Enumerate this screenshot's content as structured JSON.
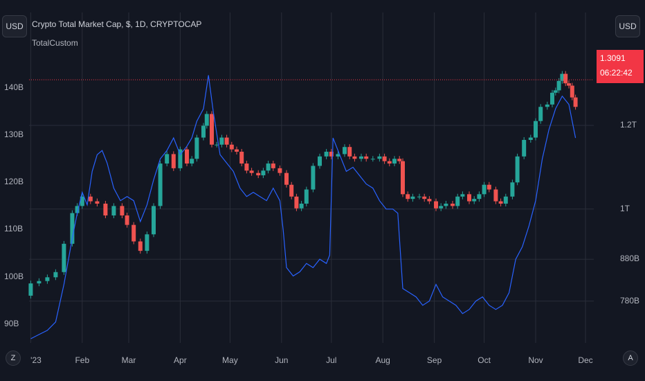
{
  "header": {
    "currency_button": "USD",
    "right_currency_button": "USD",
    "title": "Crypto Total Market Cap, $, 1D, CRYPTOCAP",
    "indicator": "TotalCustom"
  },
  "price_box": {
    "value": "1.3091",
    "countdown": "06:22:42"
  },
  "bottom": {
    "z_label": "Z",
    "a_label": "A"
  },
  "colors": {
    "background": "#131722",
    "up": "#26a69a",
    "down": "#ef5350",
    "line": "#2962ff",
    "price_line": "#f23645",
    "grid": "#2a2e39"
  },
  "chart_data": {
    "type": "candlestick+line",
    "left_axis": {
      "ticks": [
        "140B",
        "130B",
        "120B",
        "110B",
        "100B",
        "90B"
      ],
      "values": [
        140,
        130,
        120,
        110,
        100,
        90
      ],
      "range": [
        86,
        156
      ]
    },
    "right_axis": {
      "ticks": [
        "1.2T",
        "1T",
        "880B",
        "780B"
      ],
      "values": [
        1.2,
        1.0,
        0.88,
        0.78
      ],
      "range": [
        0.68,
        1.47
      ],
      "unit": "T"
    },
    "x_ticks": [
      "'23",
      "Feb",
      "Mar",
      "Apr",
      "May",
      "Jun",
      "Jul",
      "Aug",
      "Sep",
      "Oct",
      "Nov",
      "Dec"
    ],
    "x_tick_days": [
      0,
      31,
      59,
      90,
      120,
      151,
      181,
      212,
      243,
      273,
      304,
      334
    ],
    "x_range_days": [
      -1,
      339
    ],
    "grid": true,
    "price_line_value": 1.3091,
    "candles": [
      [
        0,
        1.0,
        3.6
      ],
      [
        5,
        3.6,
        4.1
      ],
      [
        10,
        4.1,
        4.9
      ],
      [
        15,
        4.9,
        6.0
      ],
      [
        20,
        6.0,
        12.0
      ],
      [
        25,
        12.0,
        18.5
      ],
      [
        28,
        18.5,
        20.0
      ],
      [
        31,
        20.0,
        22.0
      ],
      [
        36,
        22.0,
        21.0
      ],
      [
        40,
        21.0,
        20.5
      ],
      [
        45,
        20.5,
        18.0
      ],
      [
        50,
        18.0,
        20.0
      ],
      [
        55,
        20.0,
        18.0
      ],
      [
        58,
        18.0,
        16.0
      ],
      [
        62,
        16.0,
        12.5
      ],
      [
        66,
        12.5,
        10.5
      ],
      [
        70,
        10.5,
        14.0
      ],
      [
        74,
        14.0,
        20.0
      ],
      [
        78,
        20.0,
        29.0
      ],
      [
        82,
        29.0,
        31.0
      ],
      [
        86,
        31.0,
        28.0
      ],
      [
        90,
        28.0,
        32.0
      ],
      [
        94,
        32.0,
        29.0
      ],
      [
        97,
        29.0,
        30.0
      ],
      [
        100,
        30.0,
        34.5
      ],
      [
        104,
        34.5,
        37.0
      ],
      [
        106,
        37.0,
        39.5
      ],
      [
        109,
        39.5,
        33.0
      ],
      [
        112,
        33.0,
        33.0
      ],
      [
        115,
        33.0,
        34.5
      ],
      [
        118,
        34.5,
        33.0
      ],
      [
        121,
        33.0,
        32.0
      ],
      [
        124,
        32.0,
        31.5
      ],
      [
        127,
        31.5,
        29.0
      ],
      [
        130,
        29.0,
        27.5
      ],
      [
        133,
        27.5,
        27.0
      ],
      [
        137,
        27.0,
        26.5
      ],
      [
        140,
        26.5,
        27.5
      ],
      [
        143,
        27.5,
        29.0
      ],
      [
        146,
        29.0,
        28.0
      ],
      [
        150,
        28.0,
        27.0
      ],
      [
        154,
        27.0,
        24.5
      ],
      [
        157,
        24.5,
        22.0
      ],
      [
        160,
        22.0,
        19.5
      ],
      [
        163,
        19.5,
        20.5
      ],
      [
        166,
        20.5,
        23.5
      ],
      [
        170,
        23.5,
        28.5
      ],
      [
        174,
        28.5,
        30.5
      ],
      [
        178,
        30.5,
        31.5
      ],
      [
        181,
        31.5,
        30.5
      ],
      [
        185,
        30.5,
        31.0
      ],
      [
        189,
        31.0,
        32.5
      ],
      [
        192,
        32.5,
        30.5
      ],
      [
        195,
        30.5,
        30.0
      ],
      [
        199,
        30.0,
        30.5
      ],
      [
        202,
        30.5,
        30.0
      ],
      [
        206,
        30.0,
        30.0
      ],
      [
        210,
        30.0,
        30.5
      ],
      [
        213,
        30.5,
        29.5
      ],
      [
        216,
        29.5,
        29.0
      ],
      [
        219,
        29.0,
        30.0
      ],
      [
        222,
        30.0,
        29.5
      ],
      [
        224,
        29.5,
        22.5
      ],
      [
        227,
        22.5,
        21.5
      ],
      [
        230,
        21.5,
        22.0
      ],
      [
        234,
        22.0,
        22.0
      ],
      [
        237,
        22.0,
        21.5
      ],
      [
        240,
        21.5,
        21.0
      ],
      [
        244,
        21.0,
        19.5
      ],
      [
        247,
        19.5,
        20.0
      ],
      [
        250,
        20.0,
        20.5
      ],
      [
        254,
        20.5,
        20.0
      ],
      [
        257,
        20.0,
        22.0
      ],
      [
        260,
        22.0,
        22.5
      ],
      [
        264,
        22.5,
        21.0
      ],
      [
        267,
        21.0,
        21.5
      ],
      [
        270,
        21.5,
        22.5
      ],
      [
        273,
        22.5,
        24.5
      ],
      [
        276,
        24.5,
        23.5
      ],
      [
        280,
        23.5,
        21.0
      ],
      [
        283,
        21.0,
        20.5
      ],
      [
        286,
        20.5,
        22.0
      ],
      [
        290,
        22.0,
        25.0
      ],
      [
        293,
        25.0,
        30.5
      ],
      [
        297,
        30.5,
        34.0
      ],
      [
        301,
        34.0,
        34.5
      ],
      [
        304,
        34.5,
        38.0
      ],
      [
        307,
        38.0,
        41.0
      ],
      [
        311,
        41.0,
        41.5
      ],
      [
        314,
        41.5,
        44.0
      ],
      [
        316,
        44.0,
        44.5
      ],
      [
        318,
        44.5,
        46.5
      ],
      [
        320,
        46.5,
        48.0
      ],
      [
        322,
        48.0,
        46.0
      ],
      [
        324,
        46.0,
        45.5
      ],
      [
        326,
        45.5,
        43.0
      ],
      [
        328,
        43.0,
        41.0
      ]
    ],
    "custom_line": [
      [
        0,
        0.69
      ],
      [
        5,
        0.7
      ],
      [
        10,
        0.71
      ],
      [
        15,
        0.73
      ],
      [
        20,
        0.82
      ],
      [
        25,
        0.93
      ],
      [
        28,
        0.99
      ],
      [
        31,
        1.04
      ],
      [
        34,
        1.01
      ],
      [
        37,
        1.09
      ],
      [
        40,
        1.13
      ],
      [
        43,
        1.14
      ],
      [
        46,
        1.11
      ],
      [
        50,
        1.05
      ],
      [
        54,
        1.02
      ],
      [
        58,
        1.03
      ],
      [
        62,
        1.02
      ],
      [
        66,
        0.97
      ],
      [
        70,
        1.01
      ],
      [
        74,
        1.07
      ],
      [
        78,
        1.12
      ],
      [
        82,
        1.14
      ],
      [
        86,
        1.17
      ],
      [
        90,
        1.13
      ],
      [
        94,
        1.15
      ],
      [
        97,
        1.17
      ],
      [
        100,
        1.21
      ],
      [
        104,
        1.24
      ],
      [
        107,
        1.32
      ],
      [
        110,
        1.23
      ],
      [
        114,
        1.13
      ],
      [
        118,
        1.11
      ],
      [
        122,
        1.09
      ],
      [
        126,
        1.05
      ],
      [
        130,
        1.03
      ],
      [
        134,
        1.04
      ],
      [
        138,
        1.03
      ],
      [
        142,
        1.02
      ],
      [
        146,
        1.05
      ],
      [
        150,
        1.02
      ],
      [
        152,
        0.95
      ],
      [
        154,
        0.86
      ],
      [
        158,
        0.84
      ],
      [
        162,
        0.85
      ],
      [
        166,
        0.87
      ],
      [
        170,
        0.86
      ],
      [
        174,
        0.88
      ],
      [
        178,
        0.87
      ],
      [
        180,
        0.89
      ],
      [
        182,
        1.17
      ],
      [
        186,
        1.13
      ],
      [
        190,
        1.09
      ],
      [
        194,
        1.1
      ],
      [
        198,
        1.08
      ],
      [
        202,
        1.06
      ],
      [
        206,
        1.05
      ],
      [
        210,
        1.02
      ],
      [
        214,
        1.0
      ],
      [
        218,
        1.0
      ],
      [
        221,
        0.99
      ],
      [
        224,
        0.81
      ],
      [
        228,
        0.8
      ],
      [
        232,
        0.79
      ],
      [
        236,
        0.77
      ],
      [
        240,
        0.78
      ],
      [
        244,
        0.82
      ],
      [
        248,
        0.79
      ],
      [
        252,
        0.78
      ],
      [
        256,
        0.77
      ],
      [
        260,
        0.75
      ],
      [
        264,
        0.76
      ],
      [
        268,
        0.78
      ],
      [
        272,
        0.79
      ],
      [
        276,
        0.77
      ],
      [
        280,
        0.76
      ],
      [
        284,
        0.77
      ],
      [
        288,
        0.8
      ],
      [
        292,
        0.88
      ],
      [
        296,
        0.91
      ],
      [
        300,
        0.96
      ],
      [
        304,
        1.02
      ],
      [
        308,
        1.12
      ],
      [
        312,
        1.19
      ],
      [
        316,
        1.24
      ],
      [
        320,
        1.27
      ],
      [
        324,
        1.25
      ],
      [
        328,
        1.17
      ]
    ]
  }
}
